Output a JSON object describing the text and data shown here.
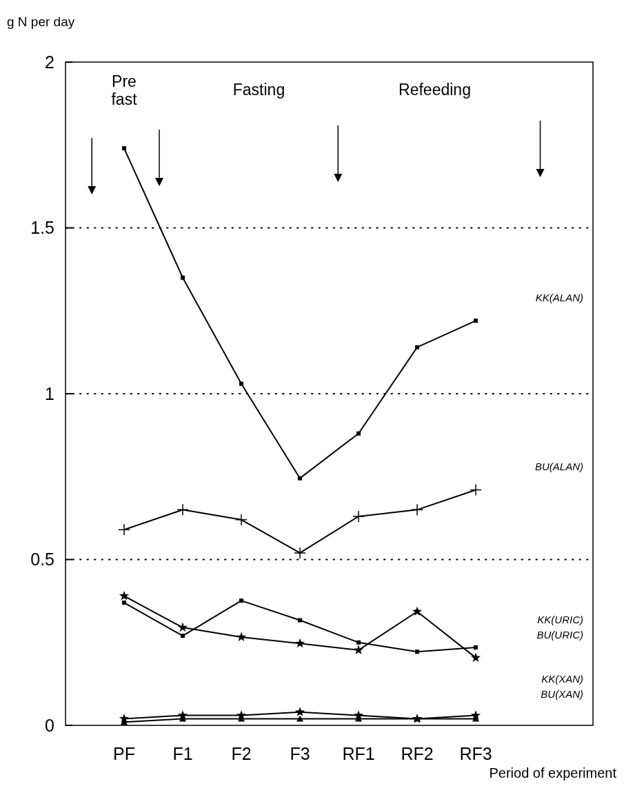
{
  "chart_data": {
    "type": "line",
    "ylabel": "g N per day",
    "xlabel": "Period of experiment",
    "categories": [
      "PF",
      "F1",
      "F2",
      "F3",
      "RF1",
      "RF2",
      "RF3"
    ],
    "ylim": [
      0,
      2
    ],
    "yticks": [
      0,
      0.5,
      1,
      1.5,
      2
    ],
    "grid": "y",
    "annotations": [
      "Pre fast",
      "Fasting",
      "Refeeding"
    ],
    "series": [
      {
        "name": "KK(ALAN)",
        "color": "#000000",
        "marker": "square",
        "values": [
          1.74,
          1.35,
          1.03,
          0.745,
          0.88,
          1.14,
          1.22
        ]
      },
      {
        "name": "BU(ALAN)",
        "color": "#000000",
        "marker": "cross",
        "values": [
          0.59,
          0.65,
          0.62,
          0.52,
          0.63,
          0.65,
          0.71
        ]
      },
      {
        "name": "KK(URIC)",
        "color": "#000000",
        "marker": "square",
        "values": [
          0.37,
          0.27,
          0.376,
          0.317,
          0.25,
          0.222,
          0.235
        ]
      },
      {
        "name": "BU(URIC)",
        "color": "#000000",
        "marker": "star",
        "values": [
          0.39,
          0.295,
          0.266,
          0.247,
          0.227,
          0.343,
          0.204
        ]
      },
      {
        "name": "KK(XAN)",
        "color": "#000000",
        "marker": "star",
        "values": [
          0.02,
          0.03,
          0.03,
          0.04,
          0.03,
          0.02,
          0.03
        ]
      },
      {
        "name": "BU(XAN)",
        "color": "#000000",
        "marker": "triangle",
        "values": [
          0.01,
          0.02,
          0.02,
          0.02,
          0.02,
          0.02,
          0.02
        ]
      }
    ]
  }
}
